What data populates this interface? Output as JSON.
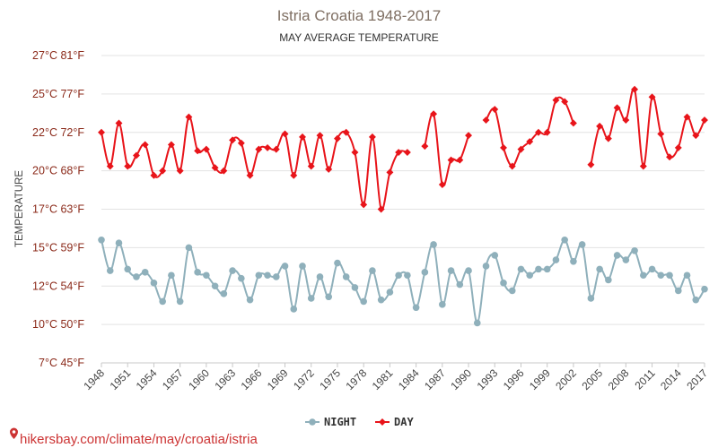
{
  "chart_data": {
    "type": "line",
    "title": "Istria Croatia 1948-2017",
    "subtitle": "MAY AVERAGE TEMPERATURE",
    "ylabel": "TEMPERATURE",
    "xlabel": "",
    "ylim": [
      7,
      27
    ],
    "y_ticks": [
      {
        "value": 7,
        "label": "7°C 45°F"
      },
      {
        "value": 9.5,
        "label": "10°C 50°F"
      },
      {
        "value": 12,
        "label": "12°C 54°F"
      },
      {
        "value": 14.5,
        "label": "15°C 59°F"
      },
      {
        "value": 17,
        "label": "17°C 63°F"
      },
      {
        "value": 19.5,
        "label": "20°C 68°F"
      },
      {
        "value": 22,
        "label": "22°C 72°F"
      },
      {
        "value": 24.5,
        "label": "25°C 77°F"
      },
      {
        "value": 27,
        "label": "27°C 81°F"
      }
    ],
    "x_ticks": [
      "1948",
      "1951",
      "1954",
      "1957",
      "1960",
      "1963",
      "1966",
      "1969",
      "1972",
      "1975",
      "1978",
      "1981",
      "1984",
      "1987",
      "1990",
      "1993",
      "1996",
      "1999",
      "2002",
      "2005",
      "2008",
      "2011",
      "2014",
      "2017"
    ],
    "x_start": 1948,
    "x_end": 2017,
    "grid": true,
    "legend_position": "bottom",
    "series": [
      {
        "name": "NIGHT",
        "color": "#8fb0bb",
        "values": [
          15.0,
          13.0,
          14.8,
          13.1,
          12.6,
          12.9,
          12.2,
          11.0,
          12.7,
          11.0,
          14.5,
          12.9,
          12.7,
          12.0,
          11.5,
          13.0,
          12.5,
          11.1,
          12.7,
          12.7,
          12.6,
          13.3,
          10.5,
          13.3,
          11.2,
          12.6,
          11.3,
          13.5,
          12.6,
          11.9,
          11.0,
          13.0,
          11.1,
          11.6,
          12.7,
          12.7,
          10.6,
          12.9,
          14.7,
          10.8,
          13.0,
          12.1,
          13.0,
          9.6,
          13.3,
          14.0,
          12.2,
          11.7,
          13.1,
          12.7,
          13.1,
          13.1,
          13.7,
          15.0,
          13.6,
          14.7,
          11.2,
          13.1,
          12.4,
          14.0,
          13.7,
          14.3,
          12.7,
          13.1,
          12.7,
          12.7,
          11.7,
          12.7,
          11.1,
          11.8
        ]
      },
      {
        "name": "DAY",
        "color": "#e8141a",
        "values": [
          22.0,
          19.8,
          22.6,
          19.8,
          20.5,
          21.2,
          19.2,
          19.5,
          21.2,
          19.5,
          23.0,
          20.8,
          20.9,
          19.7,
          19.5,
          21.5,
          21.3,
          19.2,
          20.9,
          21.0,
          20.9,
          21.9,
          19.2,
          21.7,
          19.8,
          21.8,
          19.6,
          21.6,
          22.0,
          20.7,
          17.3,
          21.7,
          17.0,
          19.4,
          20.7,
          20.7,
          null,
          21.1,
          23.2,
          18.6,
          20.2,
          20.2,
          21.8,
          null,
          22.8,
          23.5,
          21.0,
          19.8,
          20.9,
          21.4,
          22.0,
          22.0,
          24.1,
          24.0,
          22.6,
          null,
          19.9,
          22.4,
          21.6,
          23.6,
          22.8,
          24.8,
          19.8,
          24.3,
          21.9,
          20.4,
          21.0,
          23.0,
          21.8,
          22.8
        ]
      }
    ]
  },
  "source": "hikersbay.com/climate/may/croatia/istria",
  "colors": {
    "grid": "#e3e3e3",
    "axis": "#c8c8c8",
    "title": "#7f6f63",
    "ytick": "#8b2a1a"
  }
}
